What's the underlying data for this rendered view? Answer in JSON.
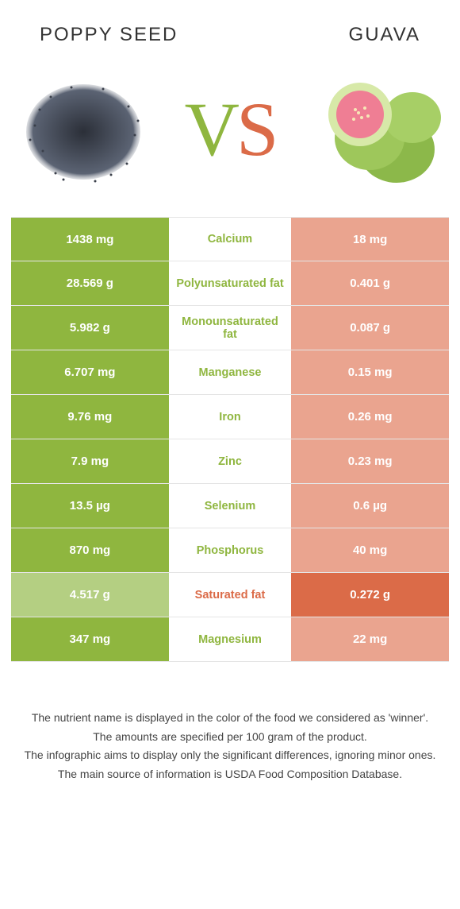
{
  "colors": {
    "left": "#8fb63f",
    "right": "#db6b48",
    "left_dim": "#b4cf82",
    "right_dim": "#eaa48f",
    "mid_bg": "#ffffff",
    "text_white": "#ffffff",
    "border": "#e5e5e5"
  },
  "header": {
    "left_title": "POPPY SEED",
    "right_title": "GUAVA",
    "vs_v": "V",
    "vs_s": "S"
  },
  "rows": [
    {
      "left": "1438 mg",
      "label": "Calcium",
      "right": "18 mg",
      "winner": "left"
    },
    {
      "left": "28.569 g",
      "label": "Polyunsaturated fat",
      "right": "0.401 g",
      "winner": "left"
    },
    {
      "left": "5.982 g",
      "label": "Monounsaturated fat",
      "right": "0.087 g",
      "winner": "left"
    },
    {
      "left": "6.707 mg",
      "label": "Manganese",
      "right": "0.15 mg",
      "winner": "left"
    },
    {
      "left": "9.76 mg",
      "label": "Iron",
      "right": "0.26 mg",
      "winner": "left"
    },
    {
      "left": "7.9 mg",
      "label": "Zinc",
      "right": "0.23 mg",
      "winner": "left"
    },
    {
      "left": "13.5 µg",
      "label": "Selenium",
      "right": "0.6 µg",
      "winner": "left"
    },
    {
      "left": "870 mg",
      "label": "Phosphorus",
      "right": "40 mg",
      "winner": "left"
    },
    {
      "left": "4.517 g",
      "label": "Saturated fat",
      "right": "0.272 g",
      "winner": "right"
    },
    {
      "left": "347 mg",
      "label": "Magnesium",
      "right": "22 mg",
      "winner": "left"
    }
  ],
  "footnotes": [
    "The nutrient name is displayed in the color of the food we considered as 'winner'.",
    "The amounts are specified per 100 gram of the product.",
    "The infographic aims to display only the significant differences, ignoring minor ones.",
    "The main source of information is USDA Food Composition Database."
  ]
}
